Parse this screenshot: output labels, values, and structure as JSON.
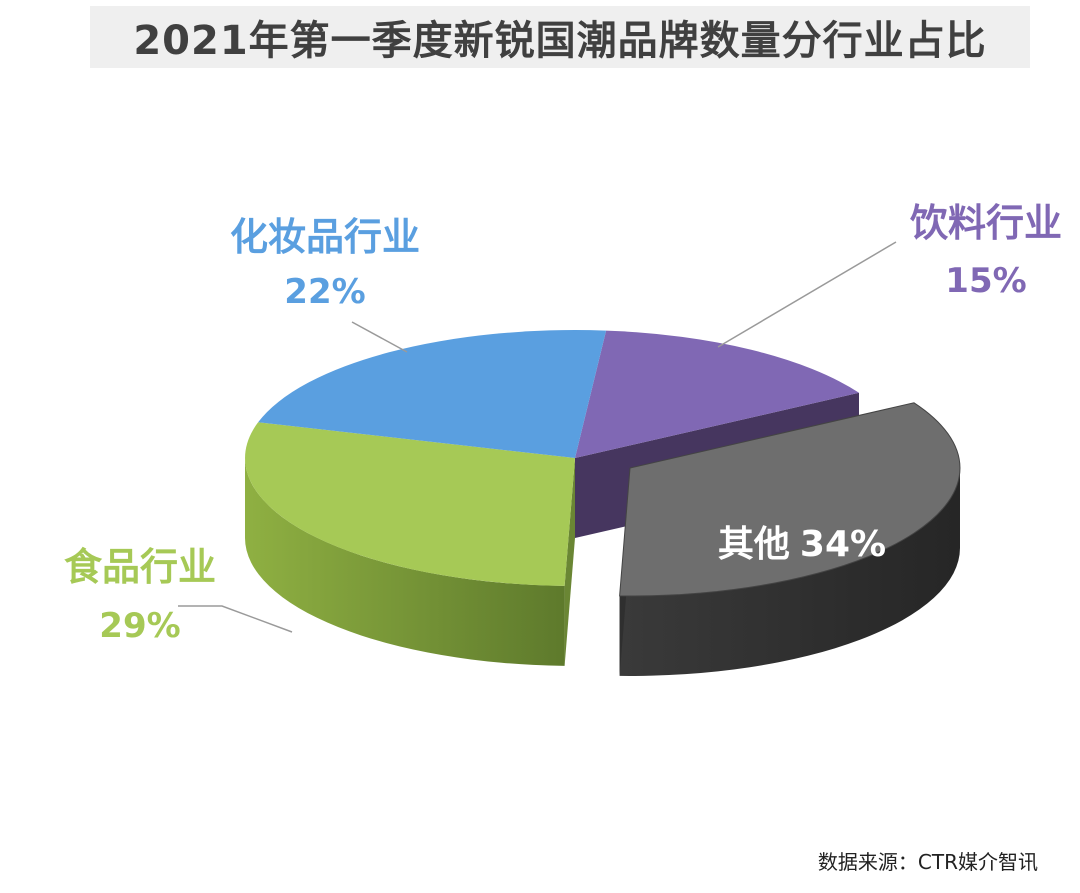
{
  "title": "2021年第一季度新锐国潮品牌数量分行业占比",
  "source": "数据来源：CTR媒介智讯",
  "chart_data": {
    "type": "pie",
    "style": "3d-exploded",
    "slices": [
      {
        "name": "其他",
        "value": 34,
        "label": "34%",
        "color": "#6e6e6e",
        "exploded": true
      },
      {
        "name": "饮料行业",
        "value": 15,
        "label": "15%",
        "color": "#8068b4"
      },
      {
        "name": "化妆品行业",
        "value": 22,
        "label": "22%",
        "color": "#5a9fe0"
      },
      {
        "name": "食品行业",
        "value": 29,
        "label": "29%",
        "color": "#a6c956"
      }
    ]
  }
}
